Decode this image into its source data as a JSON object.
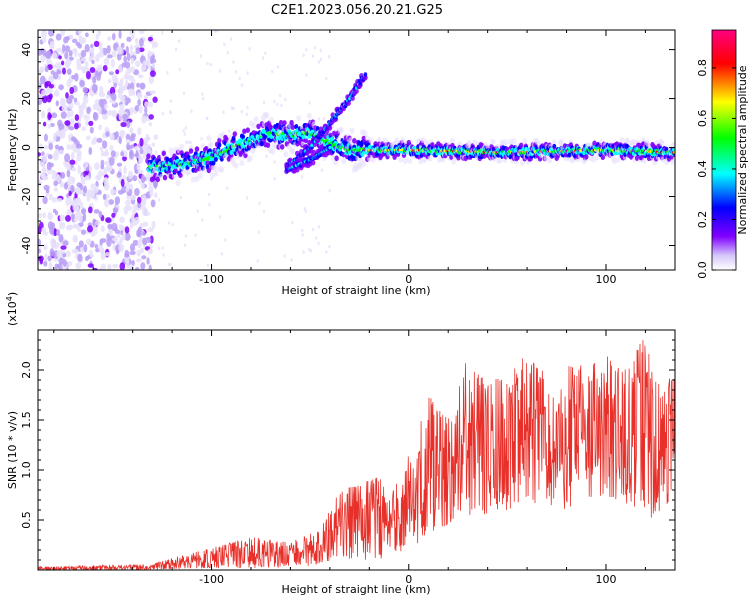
{
  "title": "C2E1.2023.056.20.21.G25",
  "chart_data": [
    {
      "type": "heatmap",
      "xlabel": "Height of straight line (km)",
      "ylabel": "Frequency (Hz)",
      "xlim": [
        -188,
        135
      ],
      "ylim": [
        -50,
        48
      ],
      "x_ticks": [
        -100,
        0,
        100
      ],
      "x_tick_labels": [
        "-100",
        "0",
        "100"
      ],
      "y_ticks": [
        -40,
        -20,
        0,
        20,
        40
      ],
      "y_tick_labels": [
        "-40",
        "-20",
        "0",
        "20",
        "40"
      ],
      "colorbar": {
        "label": "Normalized spectral amplitude",
        "range": [
          0,
          0.95
        ],
        "ticks": [
          0.0,
          0.2,
          0.4,
          0.6,
          0.8
        ],
        "tick_labels": [
          "0.0",
          "0.2",
          "0.4",
          "0.6",
          "0.8"
        ]
      },
      "ridge": [
        {
          "x": -130,
          "y": -8
        },
        {
          "x": -115,
          "y": -7
        },
        {
          "x": -100,
          "y": -4
        },
        {
          "x": -90,
          "y": 0
        },
        {
          "x": -80,
          "y": 3
        },
        {
          "x": -70,
          "y": 6
        },
        {
          "x": -60,
          "y": 5
        },
        {
          "x": -50,
          "y": 6
        },
        {
          "x": -40,
          "y": 2
        },
        {
          "x": -30,
          "y": -1
        },
        {
          "x": -20,
          "y": -1
        },
        {
          "x": 0,
          "y": -1
        },
        {
          "x": 50,
          "y": -2
        },
        {
          "x": 100,
          "y": -1
        },
        {
          "x": 135,
          "y": -2
        }
      ],
      "branches": [
        {
          "x": [
            -62,
            -50,
            -40,
            -30,
            -22
          ],
          "y": [
            -8,
            0,
            10,
            20,
            30
          ]
        },
        {
          "x": [
            -62,
            -50,
            -40
          ],
          "y": [
            -9,
            -5,
            0
          ]
        }
      ],
      "colors": [
        "#e8e0fb",
        "#8000ff",
        "#0000ff",
        "#00ffff",
        "#00ff00",
        "#ffff00",
        "#ff0000",
        "#ff0080"
      ]
    },
    {
      "type": "line",
      "xlabel": "Height of straight line (km)",
      "ylabel": "SNR (10 * v/v)",
      "multiplier": "(x10^4)",
      "multiplier_base": "(x10",
      "multiplier_exp": "4",
      "multiplier_close": ")",
      "xlim": [
        -188,
        135
      ],
      "ylim": [
        0,
        2.4
      ],
      "x_ticks": [
        -100,
        0,
        100
      ],
      "x_tick_labels": [
        "-100",
        "0",
        "100"
      ],
      "y_ticks": [
        0.5,
        1.0,
        1.5,
        2.0
      ],
      "y_tick_labels": [
        "0.5",
        "1.0",
        "1.5",
        "2.0"
      ],
      "color": "#e8302a",
      "envelope": {
        "x": [
          -188,
          -130,
          -120,
          -100,
          -80,
          -60,
          -45,
          -35,
          -25,
          -15,
          -10,
          0,
          10,
          20,
          30,
          40,
          50,
          60,
          70,
          80,
          90,
          100,
          110,
          120,
          125,
          135
        ],
        "max": [
          0.03,
          0.06,
          0.12,
          0.22,
          0.33,
          0.28,
          0.4,
          0.8,
          0.85,
          0.95,
          0.7,
          1.15,
          1.75,
          1.5,
          2.15,
          1.85,
          2.0,
          2.15,
          1.95,
          2.05,
          2.05,
          2.15,
          2.05,
          2.35,
          1.9,
          2.0
        ],
        "min": [
          0.0,
          0.0,
          0.01,
          0.02,
          0.02,
          0.03,
          0.05,
          0.1,
          0.1,
          0.1,
          0.15,
          0.2,
          0.35,
          0.45,
          0.55,
          0.55,
          0.6,
          0.7,
          0.55,
          0.6,
          0.7,
          0.75,
          0.65,
          0.55,
          0.45,
          0.8
        ]
      }
    }
  ]
}
